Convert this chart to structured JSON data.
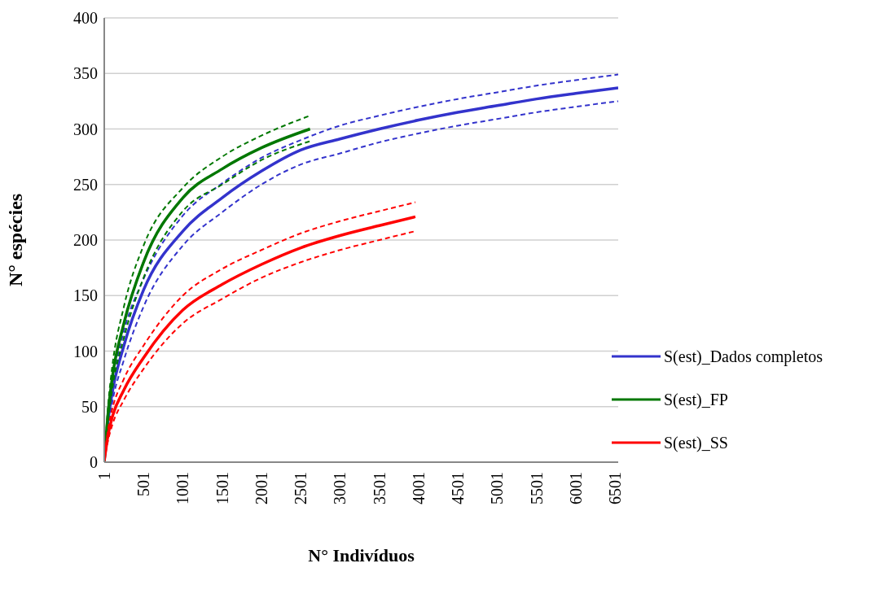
{
  "chart_data": {
    "type": "line",
    "xlabel": "N° Indivíduos",
    "ylabel": "N° espécies",
    "xlim": [
      1,
      6541
    ],
    "xticks": [
      1,
      501,
      1001,
      1501,
      2001,
      2501,
      3001,
      3501,
      4001,
      4501,
      5001,
      5501,
      6001,
      6501
    ],
    "ylim": [
      0,
      400
    ],
    "yticks": [
      0,
      50,
      100,
      150,
      200,
      250,
      300,
      350,
      400
    ],
    "grid": "y",
    "legend": "right",
    "marker": "none",
    "series": [
      {
        "name": "S(est)_Dados completos",
        "color": "#3333cc",
        "line_style": "solid",
        "x": [
          1,
          51,
          101,
          251,
          501,
          1001,
          1501,
          2001,
          2501,
          3001,
          3501,
          4001,
          4501,
          5001,
          5501,
          6001,
          6541
        ],
        "values": [
          1,
          38,
          62,
          105,
          155,
          208,
          238,
          262,
          281,
          291,
          300,
          308,
          315,
          321,
          327,
          332,
          337
        ]
      },
      {
        "color": "#3333cc",
        "line_style": "dashed",
        "x": [
          1,
          51,
          101,
          251,
          501,
          1001,
          1501,
          2001,
          2501,
          3001,
          3501,
          4001,
          4501,
          5001,
          5501,
          6001,
          6541
        ],
        "values": [
          1,
          45,
          70,
          118,
          165,
          222,
          251,
          274,
          290,
          303,
          312,
          320,
          327,
          333,
          339,
          344,
          349
        ]
      },
      {
        "color": "#3333cc",
        "line_style": "dashed",
        "x": [
          1,
          51,
          101,
          251,
          501,
          1001,
          1501,
          2001,
          2501,
          3001,
          3501,
          4001,
          4501,
          5001,
          5501,
          6001,
          6541
        ],
        "values": [
          1,
          31,
          53,
          92,
          140,
          195,
          225,
          250,
          268,
          278,
          288,
          296,
          303,
          309,
          315,
          320,
          325
        ]
      },
      {
        "name": "S(est)_FP",
        "color": "#007700",
        "line_style": "solid",
        "x": [
          1,
          51,
          101,
          251,
          501,
          1001,
          1501,
          2001,
          2620
        ],
        "values": [
          1,
          45,
          75,
          125,
          180,
          238,
          264,
          283,
          300
        ]
      },
      {
        "color": "#007700",
        "line_style": "dashed",
        "x": [
          1,
          51,
          101,
          251,
          501,
          1001,
          1501,
          2001,
          2620
        ],
        "values": [
          1,
          52,
          85,
          140,
          195,
          247,
          275,
          294,
          312
        ]
      },
      {
        "color": "#007700",
        "line_style": "dashed",
        "x": [
          1,
          51,
          101,
          251,
          501,
          1001,
          1501,
          2001,
          2620
        ],
        "values": [
          1,
          38,
          65,
          112,
          166,
          226,
          250,
          272,
          289
        ]
      },
      {
        "name": "S(est)_SS",
        "color": "#ff0000",
        "line_style": "solid",
        "x": [
          1,
          51,
          101,
          251,
          501,
          1001,
          1501,
          2001,
          2501,
          3001,
          3501,
          3960
        ],
        "values": [
          1,
          25,
          40,
          65,
          94,
          137,
          160,
          178,
          193,
          204,
          213,
          221
        ]
      },
      {
        "color": "#ff0000",
        "line_style": "dashed",
        "x": [
          1,
          51,
          101,
          251,
          501,
          1001,
          1501,
          2001,
          2501,
          3001,
          3501,
          3960
        ],
        "values": [
          1,
          30,
          47,
          75,
          105,
          150,
          174,
          191,
          206,
          217,
          226,
          234
        ]
      },
      {
        "color": "#ff0000",
        "line_style": "dashed",
        "x": [
          1,
          51,
          101,
          251,
          501,
          1001,
          1501,
          2001,
          2501,
          3001,
          3501,
          3960
        ],
        "values": [
          1,
          20,
          33,
          56,
          84,
          125,
          147,
          166,
          180,
          191,
          200,
          208
        ]
      }
    ]
  }
}
